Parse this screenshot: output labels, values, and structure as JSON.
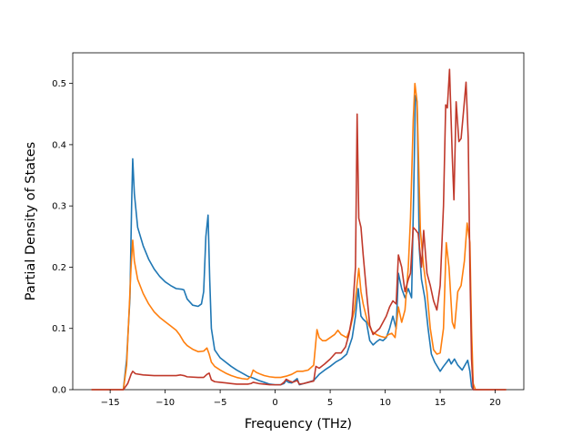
{
  "chart_data": {
    "type": "line",
    "title": "",
    "xlabel": "Frequency (THz)",
    "ylabel": "Partial Density of States",
    "xlim": [
      -18.4,
      22.6
    ],
    "ylim": [
      0,
      0.55
    ],
    "xticks": [
      -15,
      -10,
      -5,
      0,
      5,
      10,
      15,
      20
    ],
    "xtick_labels": [
      "−15",
      "−10",
      "−5",
      "0",
      "5",
      "10",
      "15",
      "20"
    ],
    "yticks": [
      0.0,
      0.1,
      0.2,
      0.3,
      0.4,
      0.5
    ],
    "ytick_labels": [
      "0.0",
      "0.1",
      "0.2",
      "0.3",
      "0.4",
      "0.5"
    ],
    "grid": false,
    "legend": "none",
    "series": [
      {
        "color": "#1f77b4",
        "points": [
          [
            -16.7,
            0
          ],
          [
            -13.8,
            0
          ],
          [
            -13.5,
            0.05
          ],
          [
            -13.2,
            0.15
          ],
          [
            -13.05,
            0.3
          ],
          [
            -12.95,
            0.377
          ],
          [
            -12.8,
            0.32
          ],
          [
            -12.5,
            0.265
          ],
          [
            -12.0,
            0.235
          ],
          [
            -11.5,
            0.213
          ],
          [
            -11.0,
            0.197
          ],
          [
            -10.5,
            0.185
          ],
          [
            -10.0,
            0.176
          ],
          [
            -9.5,
            0.17
          ],
          [
            -9.0,
            0.165
          ],
          [
            -8.5,
            0.164
          ],
          [
            -8.3,
            0.163
          ],
          [
            -8.0,
            0.148
          ],
          [
            -7.5,
            0.138
          ],
          [
            -7.0,
            0.136
          ],
          [
            -6.7,
            0.14
          ],
          [
            -6.5,
            0.16
          ],
          [
            -6.3,
            0.25
          ],
          [
            -6.1,
            0.285
          ],
          [
            -5.95,
            0.18
          ],
          [
            -5.8,
            0.1
          ],
          [
            -5.5,
            0.065
          ],
          [
            -5.0,
            0.052
          ],
          [
            -4.5,
            0.045
          ],
          [
            -4.0,
            0.038
          ],
          [
            -3.5,
            0.032
          ],
          [
            -3.0,
            0.027
          ],
          [
            -2.5,
            0.022
          ],
          [
            -2.0,
            0.019
          ],
          [
            -1.5,
            0.015
          ],
          [
            -1.0,
            0.012
          ],
          [
            -0.5,
            0.009
          ],
          [
            0.0,
            0.008
          ],
          [
            0.5,
            0.008
          ],
          [
            0.8,
            0.01
          ],
          [
            1.0,
            0.015
          ],
          [
            1.2,
            0.012
          ],
          [
            1.5,
            0.011
          ],
          [
            2.0,
            0.018
          ],
          [
            2.2,
            0.008
          ],
          [
            2.6,
            0.01
          ],
          [
            3.0,
            0.012
          ],
          [
            3.5,
            0.015
          ],
          [
            4.0,
            0.025
          ],
          [
            4.5,
            0.032
          ],
          [
            5.0,
            0.038
          ],
          [
            5.5,
            0.045
          ],
          [
            6.0,
            0.05
          ],
          [
            6.5,
            0.058
          ],
          [
            7.0,
            0.085
          ],
          [
            7.3,
            0.12
          ],
          [
            7.55,
            0.165
          ],
          [
            7.8,
            0.12
          ],
          [
            8.0,
            0.115
          ],
          [
            8.3,
            0.11
          ],
          [
            8.6,
            0.08
          ],
          [
            8.9,
            0.073
          ],
          [
            9.2,
            0.078
          ],
          [
            9.5,
            0.082
          ],
          [
            9.8,
            0.08
          ],
          [
            10.1,
            0.085
          ],
          [
            10.4,
            0.1
          ],
          [
            10.7,
            0.12
          ],
          [
            11.0,
            0.1
          ],
          [
            11.2,
            0.19
          ],
          [
            11.5,
            0.165
          ],
          [
            11.8,
            0.15
          ],
          [
            12.1,
            0.165
          ],
          [
            12.4,
            0.15
          ],
          [
            12.6,
            0.33
          ],
          [
            12.75,
            0.48
          ],
          [
            12.9,
            0.47
          ],
          [
            13.1,
            0.23
          ],
          [
            13.3,
            0.18
          ],
          [
            13.6,
            0.15
          ],
          [
            13.9,
            0.1
          ],
          [
            14.2,
            0.058
          ],
          [
            14.5,
            0.045
          ],
          [
            15.0,
            0.03
          ],
          [
            15.3,
            0.038
          ],
          [
            15.6,
            0.045
          ],
          [
            15.8,
            0.05
          ],
          [
            16.0,
            0.042
          ],
          [
            16.3,
            0.05
          ],
          [
            16.6,
            0.04
          ],
          [
            17.0,
            0.032
          ],
          [
            17.5,
            0.048
          ],
          [
            17.7,
            0.03
          ],
          [
            17.85,
            0.005
          ],
          [
            18.0,
            0
          ],
          [
            21.0,
            0
          ]
        ]
      },
      {
        "color": "#ff7f0e",
        "points": [
          [
            -16.7,
            0
          ],
          [
            -13.8,
            0
          ],
          [
            -13.5,
            0.04
          ],
          [
            -13.3,
            0.12
          ],
          [
            -13.1,
            0.2
          ],
          [
            -12.95,
            0.244
          ],
          [
            -12.8,
            0.21
          ],
          [
            -12.5,
            0.18
          ],
          [
            -12.0,
            0.157
          ],
          [
            -11.5,
            0.14
          ],
          [
            -11.0,
            0.127
          ],
          [
            -10.5,
            0.118
          ],
          [
            -10.0,
            0.111
          ],
          [
            -9.5,
            0.104
          ],
          [
            -9.0,
            0.097
          ],
          [
            -8.7,
            0.09
          ],
          [
            -8.3,
            0.078
          ],
          [
            -8.0,
            0.072
          ],
          [
            -7.5,
            0.066
          ],
          [
            -7.0,
            0.062
          ],
          [
            -6.5,
            0.063
          ],
          [
            -6.2,
            0.068
          ],
          [
            -6.0,
            0.058
          ],
          [
            -5.8,
            0.045
          ],
          [
            -5.5,
            0.038
          ],
          [
            -5.0,
            0.032
          ],
          [
            -4.5,
            0.027
          ],
          [
            -4.0,
            0.023
          ],
          [
            -3.5,
            0.02
          ],
          [
            -3.0,
            0.018
          ],
          [
            -2.5,
            0.017
          ],
          [
            -2.2,
            0.022
          ],
          [
            -2.0,
            0.032
          ],
          [
            -1.7,
            0.028
          ],
          [
            -1.3,
            0.025
          ],
          [
            -1.0,
            0.023
          ],
          [
            -0.5,
            0.021
          ],
          [
            0.0,
            0.02
          ],
          [
            0.5,
            0.02
          ],
          [
            1.0,
            0.022
          ],
          [
            1.5,
            0.025
          ],
          [
            2.0,
            0.03
          ],
          [
            2.5,
            0.03
          ],
          [
            3.0,
            0.032
          ],
          [
            3.5,
            0.04
          ],
          [
            3.8,
            0.098
          ],
          [
            4.0,
            0.085
          ],
          [
            4.3,
            0.08
          ],
          [
            4.6,
            0.08
          ],
          [
            5.0,
            0.085
          ],
          [
            5.4,
            0.09
          ],
          [
            5.7,
            0.097
          ],
          [
            6.0,
            0.09
          ],
          [
            6.5,
            0.085
          ],
          [
            6.8,
            0.098
          ],
          [
            7.2,
            0.13
          ],
          [
            7.4,
            0.165
          ],
          [
            7.6,
            0.198
          ],
          [
            7.8,
            0.16
          ],
          [
            8.0,
            0.14
          ],
          [
            8.4,
            0.11
          ],
          [
            8.8,
            0.095
          ],
          [
            9.2,
            0.09
          ],
          [
            9.6,
            0.087
          ],
          [
            10.0,
            0.085
          ],
          [
            10.3,
            0.09
          ],
          [
            10.6,
            0.092
          ],
          [
            10.9,
            0.085
          ],
          [
            11.2,
            0.135
          ],
          [
            11.5,
            0.11
          ],
          [
            11.8,
            0.13
          ],
          [
            12.1,
            0.2
          ],
          [
            12.3,
            0.28
          ],
          [
            12.55,
            0.44
          ],
          [
            12.7,
            0.5
          ],
          [
            12.9,
            0.47
          ],
          [
            13.2,
            0.26
          ],
          [
            13.5,
            0.2
          ],
          [
            13.8,
            0.16
          ],
          [
            14.1,
            0.1
          ],
          [
            14.4,
            0.065
          ],
          [
            14.7,
            0.058
          ],
          [
            15.0,
            0.06
          ],
          [
            15.3,
            0.1
          ],
          [
            15.55,
            0.24
          ],
          [
            15.8,
            0.2
          ],
          [
            16.1,
            0.11
          ],
          [
            16.3,
            0.1
          ],
          [
            16.6,
            0.16
          ],
          [
            16.9,
            0.17
          ],
          [
            17.2,
            0.21
          ],
          [
            17.45,
            0.272
          ],
          [
            17.7,
            0.24
          ],
          [
            17.85,
            0.1
          ],
          [
            18.0,
            0.01
          ],
          [
            18.2,
            0
          ],
          [
            21.0,
            0
          ]
        ]
      },
      {
        "color": "#c0392b",
        "points": [
          [
            -16.7,
            0
          ],
          [
            -13.8,
            0
          ],
          [
            -13.4,
            0.01
          ],
          [
            -13.1,
            0.025
          ],
          [
            -12.95,
            0.03
          ],
          [
            -12.7,
            0.026
          ],
          [
            -12.0,
            0.024
          ],
          [
            -11.0,
            0.023
          ],
          [
            -10.0,
            0.023
          ],
          [
            -9.0,
            0.023
          ],
          [
            -8.6,
            0.024
          ],
          [
            -8.3,
            0.023
          ],
          [
            -8.0,
            0.021
          ],
          [
            -7.0,
            0.02
          ],
          [
            -6.5,
            0.02
          ],
          [
            -6.2,
            0.025
          ],
          [
            -6.0,
            0.027
          ],
          [
            -5.8,
            0.016
          ],
          [
            -5.5,
            0.013
          ],
          [
            -5.0,
            0.012
          ],
          [
            -4.5,
            0.011
          ],
          [
            -4.0,
            0.01
          ],
          [
            -3.5,
            0.009
          ],
          [
            -3.0,
            0.009
          ],
          [
            -2.5,
            0.009
          ],
          [
            -2.2,
            0.01
          ],
          [
            -2.0,
            0.012
          ],
          [
            -1.5,
            0.01
          ],
          [
            -1.0,
            0.009
          ],
          [
            -0.5,
            0.008
          ],
          [
            0.0,
            0.008
          ],
          [
            0.5,
            0.008
          ],
          [
            0.8,
            0.012
          ],
          [
            1.0,
            0.017
          ],
          [
            1.3,
            0.014
          ],
          [
            1.6,
            0.012
          ],
          [
            2.0,
            0.015
          ],
          [
            2.2,
            0.009
          ],
          [
            2.6,
            0.01
          ],
          [
            3.0,
            0.012
          ],
          [
            3.5,
            0.014
          ],
          [
            3.7,
            0.038
          ],
          [
            4.0,
            0.035
          ],
          [
            4.5,
            0.042
          ],
          [
            5.0,
            0.05
          ],
          [
            5.5,
            0.06
          ],
          [
            6.0,
            0.06
          ],
          [
            6.4,
            0.07
          ],
          [
            6.7,
            0.09
          ],
          [
            7.0,
            0.12
          ],
          [
            7.3,
            0.2
          ],
          [
            7.45,
            0.45
          ],
          [
            7.6,
            0.28
          ],
          [
            7.8,
            0.265
          ],
          [
            8.0,
            0.22
          ],
          [
            8.3,
            0.16
          ],
          [
            8.6,
            0.105
          ],
          [
            8.9,
            0.09
          ],
          [
            9.2,
            0.095
          ],
          [
            9.5,
            0.1
          ],
          [
            9.8,
            0.11
          ],
          [
            10.1,
            0.12
          ],
          [
            10.4,
            0.135
          ],
          [
            10.7,
            0.145
          ],
          [
            11.0,
            0.14
          ],
          [
            11.2,
            0.22
          ],
          [
            11.5,
            0.2
          ],
          [
            11.8,
            0.16
          ],
          [
            12.1,
            0.18
          ],
          [
            12.3,
            0.19
          ],
          [
            12.55,
            0.265
          ],
          [
            12.8,
            0.26
          ],
          [
            13.0,
            0.255
          ],
          [
            13.3,
            0.2
          ],
          [
            13.5,
            0.26
          ],
          [
            13.8,
            0.19
          ],
          [
            14.1,
            0.17
          ],
          [
            14.4,
            0.145
          ],
          [
            14.7,
            0.13
          ],
          [
            15.0,
            0.17
          ],
          [
            15.3,
            0.3
          ],
          [
            15.5,
            0.465
          ],
          [
            15.65,
            0.46
          ],
          [
            15.85,
            0.523
          ],
          [
            16.1,
            0.38
          ],
          [
            16.25,
            0.31
          ],
          [
            16.45,
            0.47
          ],
          [
            16.7,
            0.405
          ],
          [
            16.9,
            0.41
          ],
          [
            17.1,
            0.45
          ],
          [
            17.35,
            0.502
          ],
          [
            17.55,
            0.41
          ],
          [
            17.7,
            0.2
          ],
          [
            17.85,
            0.05
          ],
          [
            18.0,
            0
          ],
          [
            21.0,
            0
          ]
        ]
      }
    ]
  }
}
